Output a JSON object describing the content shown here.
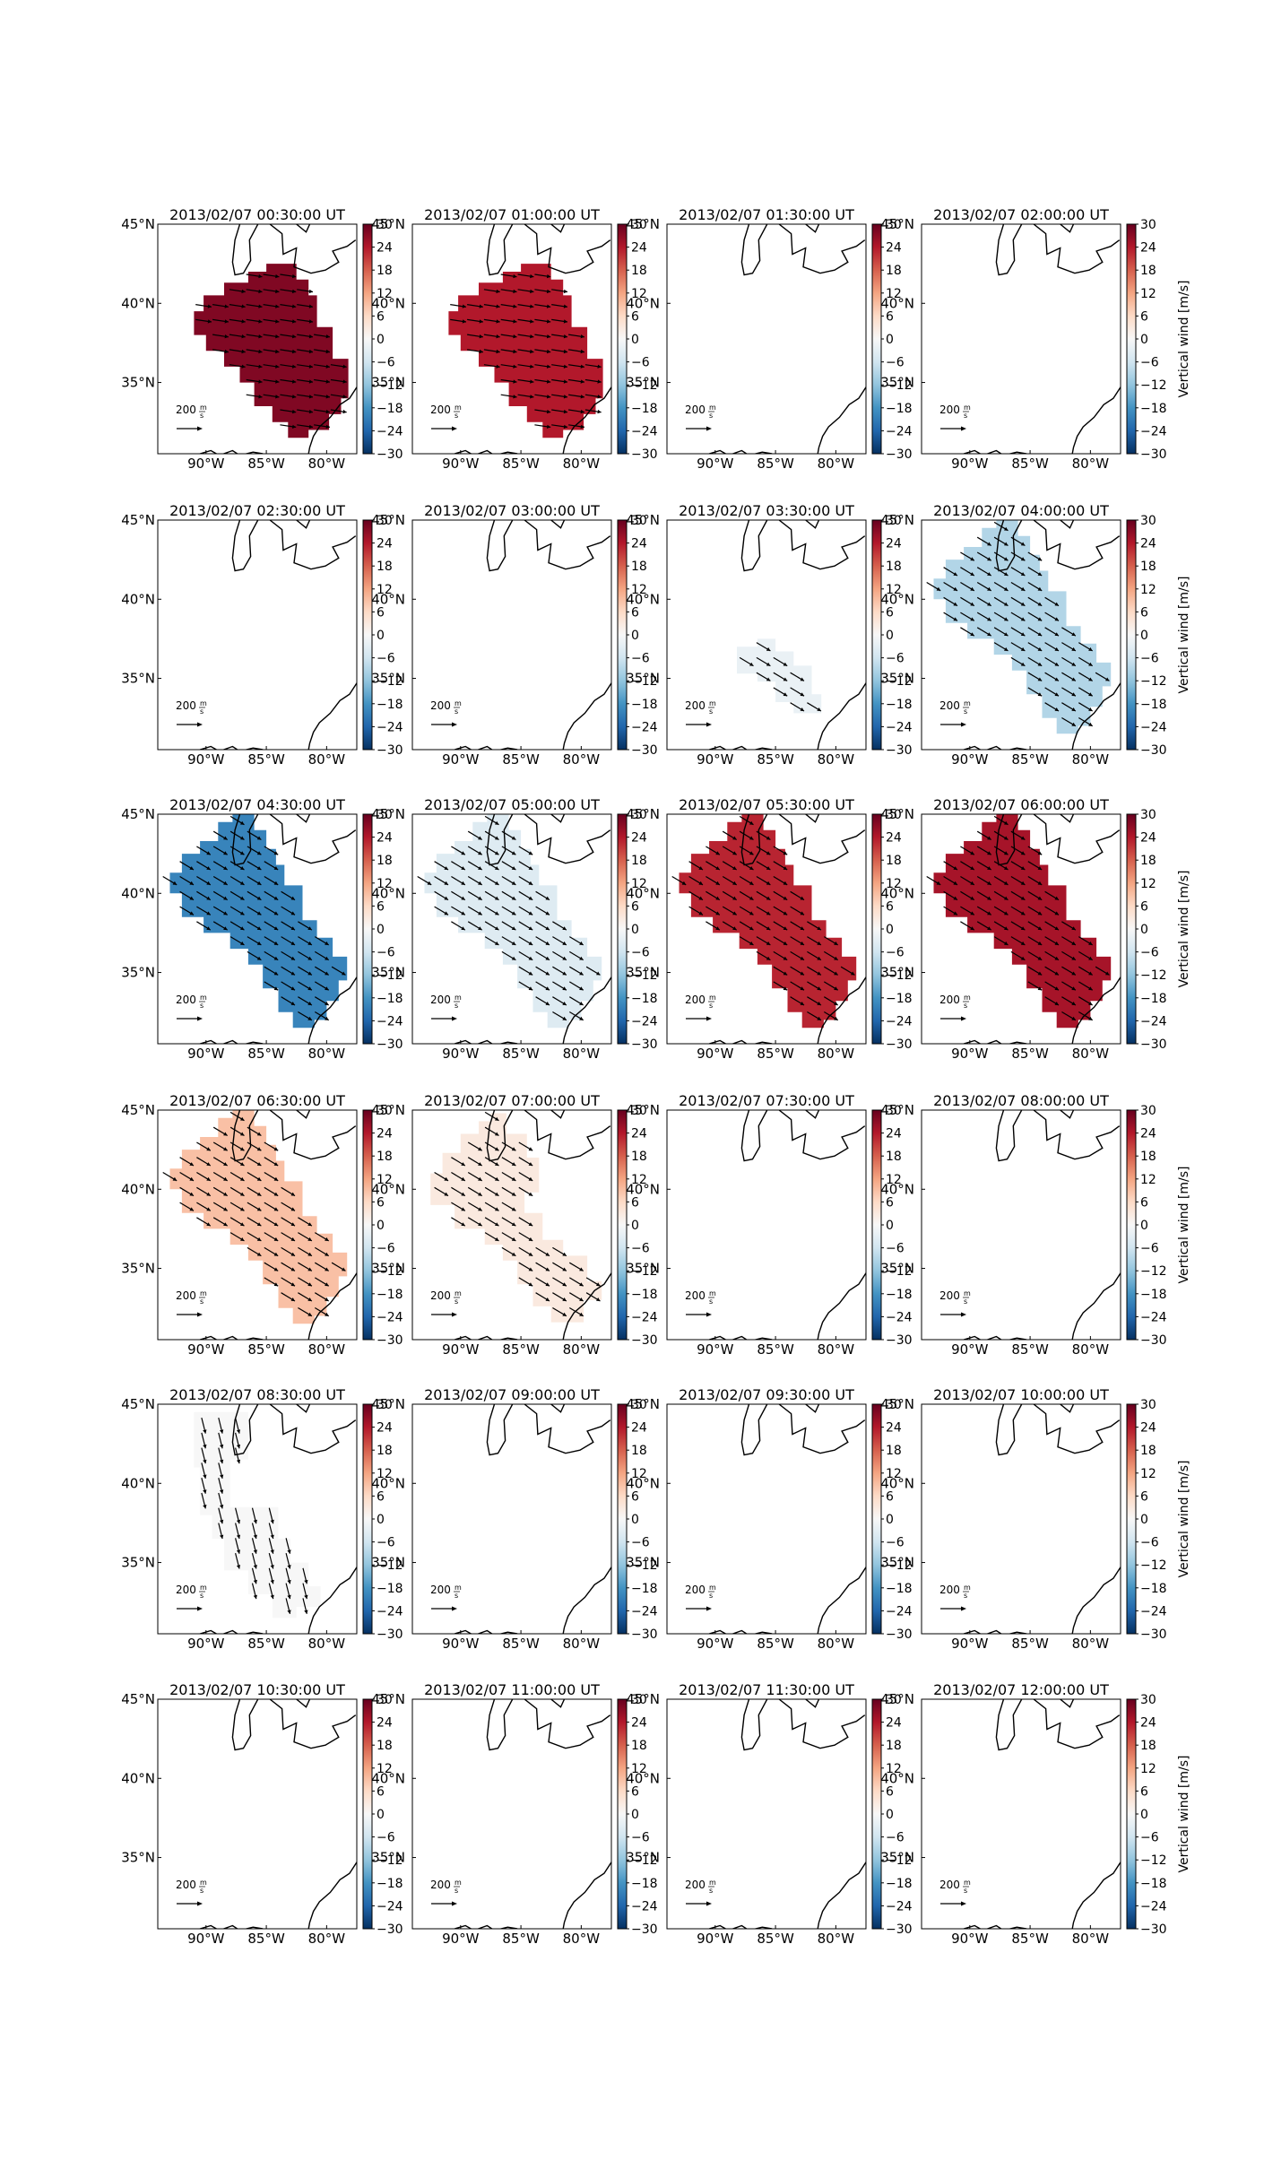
{
  "chart_data": {
    "type": "map-grid",
    "panel_title_suffix": " UT",
    "colorbar": {
      "label": "Vertical wind [m/s]",
      "range": [
        -30,
        30
      ],
      "ticks": [
        30,
        24,
        18,
        12,
        6,
        0,
        -6,
        -12,
        -18,
        -24,
        -30
      ],
      "tick_labels": [
        "30",
        "24",
        "18",
        "12",
        "6",
        "0",
        "−6",
        "−12",
        "−18",
        "−24",
        "−30"
      ],
      "colormap": "RdBu_r"
    },
    "axes": {
      "lon_ticks": [
        -90,
        -85,
        -80
      ],
      "lon_tick_labels": [
        "90°W",
        "85°W",
        "80°W"
      ],
      "lat_ticks": [
        45,
        40,
        35
      ],
      "lat_tick_labels": [
        "45°N",
        "40°N",
        "35°N"
      ],
      "lon_range": [
        -94,
        -77.5
      ],
      "lat_range": [
        30.5,
        45
      ]
    },
    "reference_arrow": {
      "label": "200",
      "unit_num": "m",
      "unit_den": "s"
    },
    "panels": [
      {
        "time": "2013/02/07 00:30:00",
        "region": "A",
        "vertical_wind": 28,
        "wind_direction": "east"
      },
      {
        "time": "2013/02/07 01:00:00",
        "region": "A",
        "vertical_wind": 24,
        "wind_direction": "east"
      },
      {
        "time": "2013/02/07 01:30:00",
        "region": null,
        "vertical_wind": null
      },
      {
        "time": "2013/02/07 02:00:00",
        "region": null,
        "vertical_wind": null
      },
      {
        "time": "2013/02/07 02:30:00",
        "region": null,
        "vertical_wind": null
      },
      {
        "time": "2013/02/07 03:00:00",
        "region": null,
        "vertical_wind": null
      },
      {
        "time": "2013/02/07 03:30:00",
        "region": "C",
        "vertical_wind": -2,
        "wind_direction": "southeast"
      },
      {
        "time": "2013/02/07 04:00:00",
        "region": "B",
        "vertical_wind": -9,
        "wind_direction": "southeast"
      },
      {
        "time": "2013/02/07 04:30:00",
        "region": "B",
        "vertical_wind": -20,
        "wind_direction": "southeast"
      },
      {
        "time": "2013/02/07 05:00:00",
        "region": "B",
        "vertical_wind": -4,
        "wind_direction": "southeast"
      },
      {
        "time": "2013/02/07 05:30:00",
        "region": "B",
        "vertical_wind": 23,
        "wind_direction": "southeast"
      },
      {
        "time": "2013/02/07 06:00:00",
        "region": "B",
        "vertical_wind": 25,
        "wind_direction": "southeast"
      },
      {
        "time": "2013/02/07 06:30:00",
        "region": "B",
        "vertical_wind": 9,
        "wind_direction": "southeast"
      },
      {
        "time": "2013/02/07 07:00:00",
        "region": "D",
        "vertical_wind": 3,
        "wind_direction": "southeast"
      },
      {
        "time": "2013/02/07 07:30:00",
        "region": null,
        "vertical_wind": null
      },
      {
        "time": "2013/02/07 08:00:00",
        "region": null,
        "vertical_wind": null
      },
      {
        "time": "2013/02/07 08:30:00",
        "region": "E",
        "vertical_wind": 0,
        "wind_direction": "south"
      },
      {
        "time": "2013/02/07 09:00:00",
        "region": null,
        "vertical_wind": null
      },
      {
        "time": "2013/02/07 09:30:00",
        "region": null,
        "vertical_wind": null
      },
      {
        "time": "2013/02/07 10:00:00",
        "region": null,
        "vertical_wind": null
      },
      {
        "time": "2013/02/07 10:30:00",
        "region": null,
        "vertical_wind": null
      },
      {
        "time": "2013/02/07 11:00:00",
        "region": null,
        "vertical_wind": null
      },
      {
        "time": "2013/02/07 11:30:00",
        "region": null,
        "vertical_wind": null
      },
      {
        "time": "2013/02/07 12:00:00",
        "region": null,
        "vertical_wind": null
      }
    ]
  }
}
